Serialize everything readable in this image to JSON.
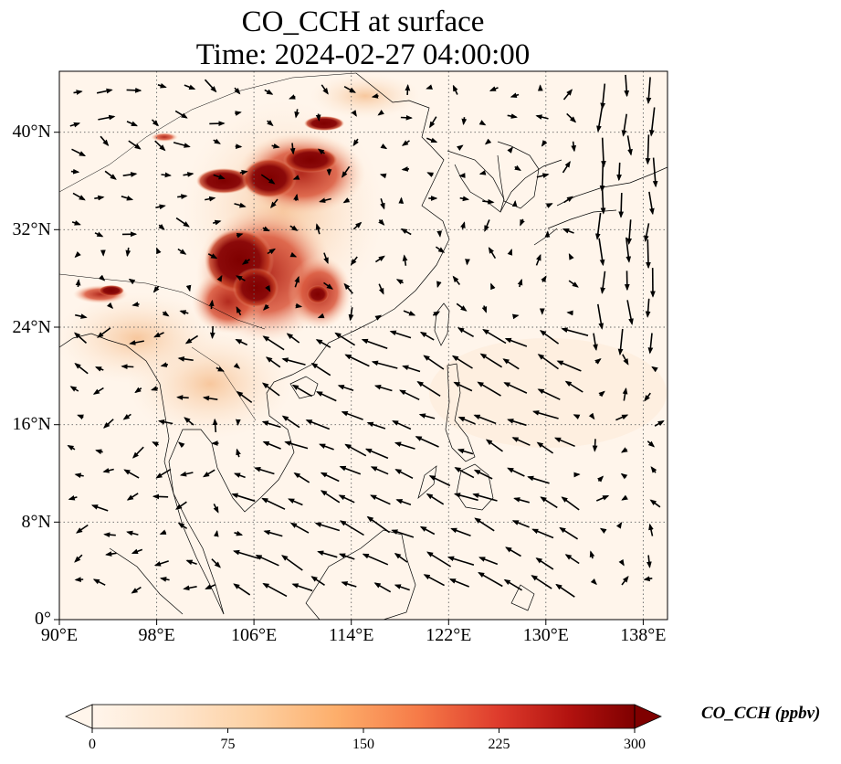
{
  "title": {
    "line1": "CO_CCH at surface",
    "line2": "Time: 2024-02-27 04:00:00"
  },
  "map": {
    "lon_range": [
      90,
      140
    ],
    "lat_range": [
      0,
      45
    ],
    "lon_ticks": [
      "90°E",
      "98°E",
      "106°E",
      "114°E",
      "122°E",
      "130°E",
      "138°E"
    ],
    "lat_ticks": [
      "0°",
      "8°N",
      "16°N",
      "24°N",
      "32°N",
      "40°N"
    ],
    "gridlines": "dotted",
    "field": "CO_CCH",
    "vectors": "surface wind arrows"
  },
  "colorbar": {
    "label": "CO_CCH (ppbv)",
    "ticks": [
      "0",
      "75",
      "150",
      "225",
      "300"
    ],
    "min": 0,
    "max": 300,
    "colormap": [
      "#fff5eb",
      "#fdd9b0",
      "#fdae6b",
      "#f16913",
      "#d94801",
      "#a50f15",
      "#7f0000"
    ],
    "extend": "both"
  }
}
